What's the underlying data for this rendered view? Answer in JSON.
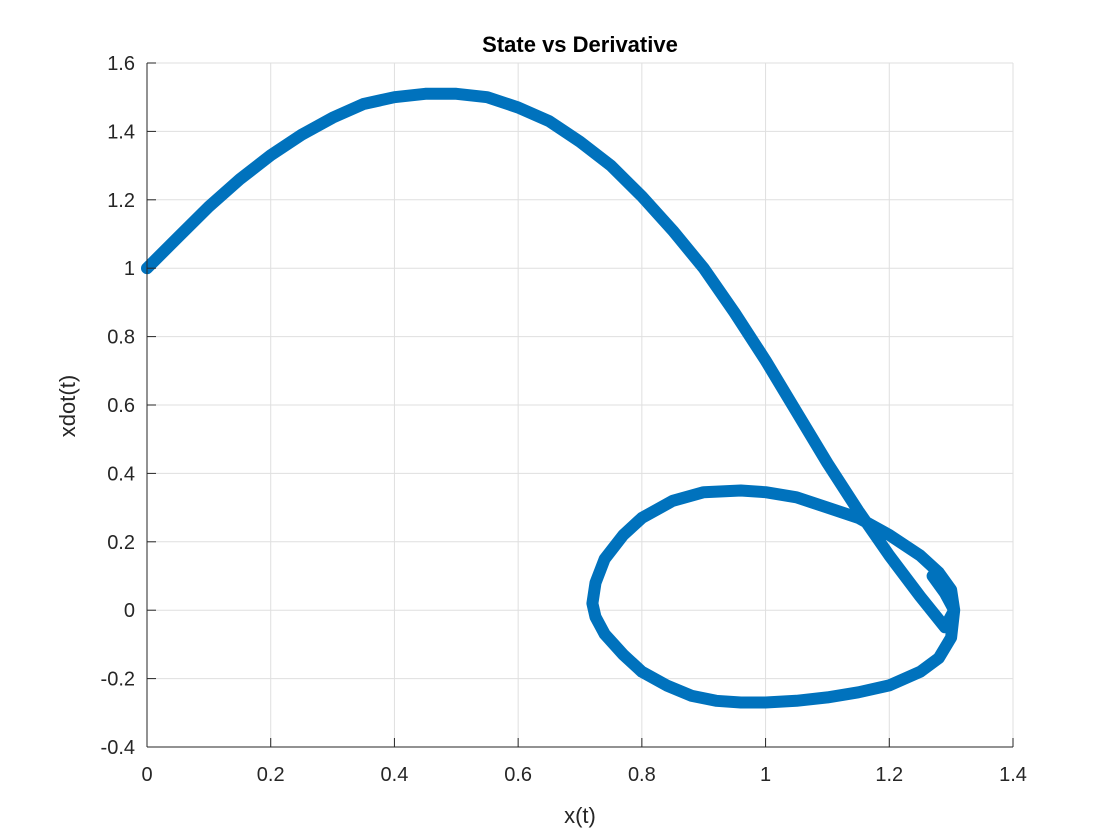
{
  "chart_data": {
    "type": "line",
    "title": "State vs Derivative",
    "xlabel": "x(t)",
    "ylabel": "xdot(t)",
    "xlim": [
      0,
      1.4
    ],
    "ylim": [
      -0.4,
      1.6
    ],
    "xticks": [
      0,
      0.2,
      0.4,
      0.6,
      0.8,
      1,
      1.2,
      1.4
    ],
    "xtick_labels": [
      "0",
      "0.2",
      "0.4",
      "0.6",
      "0.8",
      "1",
      "1.2",
      "1.4"
    ],
    "yticks": [
      -0.4,
      -0.2,
      0,
      0.2,
      0.4,
      0.6,
      0.8,
      1,
      1.2,
      1.4,
      1.6
    ],
    "ytick_labels": [
      "-0.4",
      "-0.2",
      "0",
      "0.2",
      "0.4",
      "0.6",
      "0.8",
      "1",
      "1.2",
      "1.4",
      "1.6"
    ],
    "grid": true,
    "series": [
      {
        "color": "#0072bd",
        "x": [
          0,
          0.05,
          0.1,
          0.15,
          0.2,
          0.25,
          0.3,
          0.35,
          0.4,
          0.45,
          0.5,
          0.55,
          0.6,
          0.65,
          0.7,
          0.75,
          0.8,
          0.85,
          0.9,
          0.95,
          1.0,
          1.05,
          1.1,
          1.15,
          1.2,
          1.25,
          1.29,
          1.305,
          1.3,
          1.28,
          1.25,
          1.2,
          1.15,
          1.1,
          1.05,
          1.0,
          0.96,
          0.92,
          0.88,
          0.84,
          0.8,
          0.77,
          0.74,
          0.725,
          0.72,
          0.725,
          0.74,
          0.77,
          0.8,
          0.85,
          0.9,
          0.96,
          1.0,
          1.05,
          1.1,
          1.15,
          1.2,
          1.25,
          1.28,
          1.3,
          1.305,
          1.29,
          1.27
        ],
        "y": [
          1.0,
          1.09,
          1.18,
          1.26,
          1.33,
          1.39,
          1.44,
          1.48,
          1.5,
          1.51,
          1.51,
          1.5,
          1.47,
          1.43,
          1.37,
          1.3,
          1.21,
          1.11,
          1.0,
          0.87,
          0.73,
          0.58,
          0.43,
          0.29,
          0.16,
          0.04,
          -0.05,
          0.0,
          -0.08,
          -0.14,
          -0.18,
          -0.22,
          -0.24,
          -0.255,
          -0.265,
          -0.27,
          -0.27,
          -0.265,
          -0.25,
          -0.22,
          -0.18,
          -0.13,
          -0.07,
          -0.02,
          0.02,
          0.08,
          0.15,
          0.22,
          0.27,
          0.32,
          0.345,
          0.35,
          0.345,
          0.33,
          0.3,
          0.27,
          0.22,
          0.16,
          0.11,
          0.06,
          0.0,
          0.05,
          0.1
        ]
      }
    ]
  }
}
